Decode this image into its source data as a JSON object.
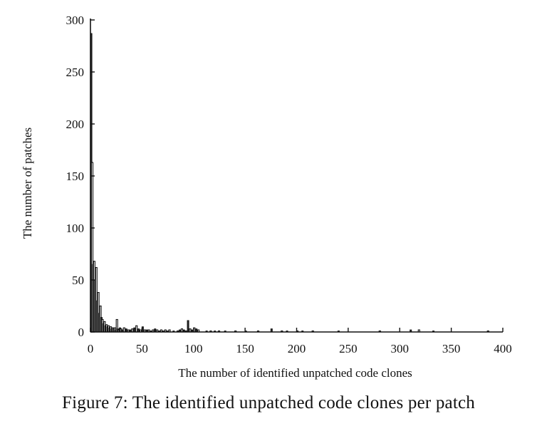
{
  "caption": "Figure 7: The identified unpatched code clones per patch",
  "chart_data": {
    "type": "bar",
    "title": "",
    "xlabel": "The number of identified unpatched code clones",
    "ylabel": "The number of patches",
    "xlim": [
      0,
      400
    ],
    "ylim": [
      0,
      300
    ],
    "xticks": [
      0,
      50,
      100,
      150,
      200,
      250,
      300,
      350,
      400
    ],
    "yticks": [
      0,
      50,
      100,
      150,
      200,
      250,
      300
    ],
    "grid": false,
    "legend": "none",
    "bar_color": "#2a2a2a",
    "x": [
      0,
      1,
      2,
      3,
      4,
      5,
      6,
      7,
      8,
      9,
      10,
      11,
      12,
      13,
      14,
      15,
      16,
      17,
      18,
      19,
      20,
      21,
      22,
      23,
      24,
      25,
      26,
      27,
      28,
      29,
      30,
      32,
      34,
      36,
      38,
      40,
      42,
      44,
      46,
      48,
      50,
      52,
      54,
      56,
      58,
      60,
      62,
      64,
      66,
      68,
      70,
      72,
      74,
      76,
      80,
      84,
      86,
      88,
      90,
      92,
      94,
      96,
      98,
      100,
      102,
      104,
      112,
      116,
      120,
      124,
      130,
      140,
      150,
      162,
      175,
      185,
      190,
      200,
      205,
      215,
      240,
      280,
      310,
      318,
      332,
      385
    ],
    "values": [
      287,
      163,
      65,
      68,
      50,
      62,
      30,
      38,
      18,
      25,
      14,
      12,
      8,
      10,
      6,
      7,
      5,
      6,
      4,
      5,
      3,
      4,
      3,
      4,
      2,
      12,
      3,
      2,
      4,
      3,
      2,
      4,
      3,
      2,
      2,
      3,
      4,
      6,
      3,
      2,
      5,
      2,
      2,
      2,
      1,
      2,
      3,
      2,
      1,
      2,
      1,
      2,
      1,
      2,
      1,
      1,
      2,
      3,
      2,
      1,
      11,
      3,
      2,
      4,
      3,
      2,
      1,
      1,
      1,
      1,
      1,
      1,
      1,
      1,
      3,
      1,
      1,
      1,
      1,
      1,
      1,
      1,
      2,
      2,
      1,
      1
    ]
  }
}
